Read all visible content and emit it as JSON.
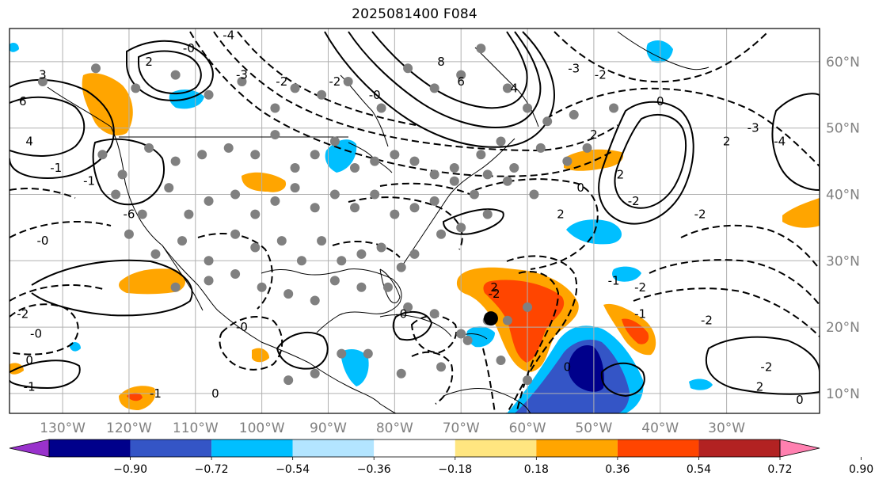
{
  "title": "2025081400 F084",
  "map": {
    "projection": "equirectangular",
    "lon_range": [
      -138,
      -16
    ],
    "lat_range": [
      7,
      65
    ],
    "grid": true,
    "lon_ticks": [
      {
        "lon": -130,
        "label": "130°W"
      },
      {
        "lon": -120,
        "label": "120°W"
      },
      {
        "lon": -110,
        "label": "110°W"
      },
      {
        "lon": -100,
        "label": "100°W"
      },
      {
        "lon": -90,
        "label": "90°W"
      },
      {
        "lon": -80,
        "label": "80°W"
      },
      {
        "lon": -70,
        "label": "70°W"
      },
      {
        "lon": -60,
        "label": "60°W"
      },
      {
        "lon": -50,
        "label": "50°W"
      },
      {
        "lon": -40,
        "label": "40°W"
      },
      {
        "lon": -30,
        "label": "30°W"
      }
    ],
    "lat_ticks": [
      {
        "lat": 60,
        "label": "60°N"
      },
      {
        "lat": 50,
        "label": "50°N"
      },
      {
        "lat": 40,
        "label": "40°N"
      },
      {
        "lat": 30,
        "label": "30°N"
      },
      {
        "lat": 20,
        "label": "20°N"
      },
      {
        "lat": 10,
        "label": "10°N"
      }
    ],
    "storm_center": {
      "lon": -65.5,
      "lat": 21.3
    },
    "station_markers": [
      [
        -133,
        57
      ],
      [
        -125,
        59
      ],
      [
        -119,
        56
      ],
      [
        -113,
        58
      ],
      [
        -108,
        55
      ],
      [
        -103,
        57
      ],
      [
        -98,
        53
      ],
      [
        -95,
        56
      ],
      [
        -91,
        55
      ],
      [
        -87,
        57
      ],
      [
        -82,
        53
      ],
      [
        -78,
        59
      ],
      [
        -74,
        56
      ],
      [
        -70,
        58
      ],
      [
        -67,
        62
      ],
      [
        -63,
        56
      ],
      [
        -60,
        53
      ],
      [
        -57,
        51
      ],
      [
        -53,
        52
      ],
      [
        -51,
        47
      ],
      [
        -47,
        53
      ],
      [
        -124,
        46
      ],
      [
        -121,
        43
      ],
      [
        -117,
        47
      ],
      [
        -113,
        45
      ],
      [
        -109,
        46
      ],
      [
        -105,
        47
      ],
      [
        -101,
        46
      ],
      [
        -98,
        49
      ],
      [
        -95,
        44
      ],
      [
        -92,
        46
      ],
      [
        -89,
        48
      ],
      [
        -86,
        44
      ],
      [
        -83,
        45
      ],
      [
        -80,
        46
      ],
      [
        -77,
        45
      ],
      [
        -74,
        43
      ],
      [
        -71,
        44
      ],
      [
        -67,
        46
      ],
      [
        -64,
        48
      ],
      [
        -62,
        44
      ],
      [
        -58,
        47
      ],
      [
        -54,
        45
      ],
      [
        -122,
        40
      ],
      [
        -118,
        37
      ],
      [
        -114,
        41
      ],
      [
        -111,
        37
      ],
      [
        -108,
        39
      ],
      [
        -104,
        40
      ],
      [
        -101,
        37
      ],
      [
        -98,
        39
      ],
      [
        -95,
        41
      ],
      [
        -92,
        38
      ],
      [
        -89,
        40
      ],
      [
        -86,
        38
      ],
      [
        -83,
        40
      ],
      [
        -80,
        37
      ],
      [
        -77,
        38
      ],
      [
        -74,
        39
      ],
      [
        -71,
        42
      ],
      [
        -68,
        40
      ],
      [
        -66,
        43
      ],
      [
        -63,
        42
      ],
      [
        -59,
        40
      ],
      [
        -120,
        34
      ],
      [
        -116,
        31
      ],
      [
        -112,
        33
      ],
      [
        -108,
        30
      ],
      [
        -104,
        34
      ],
      [
        -101,
        32
      ],
      [
        -97,
        33
      ],
      [
        -94,
        30
      ],
      [
        -91,
        33
      ],
      [
        -88,
        30
      ],
      [
        -85,
        31
      ],
      [
        -82,
        32
      ],
      [
        -79,
        29
      ],
      [
        -77,
        31
      ],
      [
        -73,
        34
      ],
      [
        -70,
        35
      ],
      [
        -66,
        37
      ],
      [
        -113,
        26
      ],
      [
        -108,
        27
      ],
      [
        -104,
        28
      ],
      [
        -100,
        26
      ],
      [
        -96,
        25
      ],
      [
        -92,
        24
      ],
      [
        -89,
        27
      ],
      [
        -85,
        26
      ],
      [
        -81,
        26
      ],
      [
        -78,
        23
      ],
      [
        -74,
        22
      ],
      [
        -70,
        19
      ],
      [
        -66,
        21
      ],
      [
        -63,
        21
      ],
      [
        -60,
        23
      ],
      [
        -69,
        18
      ],
      [
        -64,
        15
      ],
      [
        -60,
        12
      ],
      [
        -73,
        14
      ],
      [
        -79,
        13
      ],
      [
        -84,
        16
      ],
      [
        -88,
        16
      ],
      [
        -92,
        13
      ],
      [
        -96,
        12
      ]
    ],
    "contours": [
      {
        "lon": -133,
        "lat": 58,
        "value": "3"
      },
      {
        "lon": -136,
        "lat": 54,
        "value": "6"
      },
      {
        "lon": -135,
        "lat": 48,
        "value": "4"
      },
      {
        "lon": -131,
        "lat": 44,
        "value": "-1"
      },
      {
        "lon": -133,
        "lat": 33,
        "value": "-0"
      },
      {
        "lon": -126,
        "lat": 42,
        "value": "-1"
      },
      {
        "lon": -120,
        "lat": 37,
        "value": "-6"
      },
      {
        "lon": -117,
        "lat": 60,
        "value": "2"
      },
      {
        "lon": -111,
        "lat": 62,
        "value": "-0"
      },
      {
        "lon": -105,
        "lat": 64,
        "value": "-4"
      },
      {
        "lon": -103,
        "lat": 58,
        "value": "-3"
      },
      {
        "lon": -97,
        "lat": 57,
        "value": "-2"
      },
      {
        "lon": -89,
        "lat": 57,
        "value": "-2"
      },
      {
        "lon": -83,
        "lat": 55,
        "value": "-0"
      },
      {
        "lon": -70,
        "lat": 57,
        "value": "6"
      },
      {
        "lon": -73,
        "lat": 60,
        "value": "8"
      },
      {
        "lon": -62,
        "lat": 56,
        "value": "4"
      },
      {
        "lon": -53,
        "lat": 59,
        "value": "-3"
      },
      {
        "lon": -49,
        "lat": 58,
        "value": "-2"
      },
      {
        "lon": -40,
        "lat": 54,
        "value": "0"
      },
      {
        "lon": -50,
        "lat": 49,
        "value": "2"
      },
      {
        "lon": -46,
        "lat": 43,
        "value": "2"
      },
      {
        "lon": -52,
        "lat": 41,
        "value": "0"
      },
      {
        "lon": -55,
        "lat": 37,
        "value": "2"
      },
      {
        "lon": -44,
        "lat": 39,
        "value": "-2"
      },
      {
        "lon": -34,
        "lat": 37,
        "value": "-2"
      },
      {
        "lon": -30,
        "lat": 48,
        "value": "2"
      },
      {
        "lon": -26,
        "lat": 50,
        "value": "-3"
      },
      {
        "lon": -22,
        "lat": 48,
        "value": "-4"
      },
      {
        "lon": -65,
        "lat": 25,
        "value": "-2"
      },
      {
        "lon": -65,
        "lat": 26,
        "value": "2"
      },
      {
        "lon": -79,
        "lat": 22,
        "value": "-0"
      },
      {
        "lon": -103,
        "lat": 20,
        "value": "-0"
      },
      {
        "lon": -116,
        "lat": 10,
        "value": "-1"
      },
      {
        "lon": -107,
        "lat": 10,
        "value": "0"
      },
      {
        "lon": -54,
        "lat": 14,
        "value": "0"
      },
      {
        "lon": -43,
        "lat": 22,
        "value": "-1"
      },
      {
        "lon": -47,
        "lat": 27,
        "value": "-1"
      },
      {
        "lon": -43,
        "lat": 26,
        "value": "-2"
      },
      {
        "lon": -33,
        "lat": 21,
        "value": "-2"
      },
      {
        "lon": -24,
        "lat": 14,
        "value": "-2"
      },
      {
        "lon": -25,
        "lat": 11,
        "value": "2"
      },
      {
        "lon": -19,
        "lat": 9,
        "value": "0"
      },
      {
        "lon": -136,
        "lat": 22,
        "value": "-2"
      },
      {
        "lon": -134,
        "lat": 19,
        "value": "-0"
      },
      {
        "lon": -135,
        "lat": 15,
        "value": "0"
      },
      {
        "lon": -135,
        "lat": 11,
        "value": "-1"
      }
    ]
  },
  "colorbar": {
    "colors": [
      "#9932cc",
      "#00008b",
      "#3455c6",
      "#00bfff",
      "#b3e5ff",
      "#ffffff",
      "#ffe680",
      "#ffa500",
      "#ff4500",
      "#b22222",
      "#ff80b0"
    ],
    "tick_labels": [
      "−0.90",
      "−0.72",
      "−0.54",
      "−0.36",
      "−0.18",
      "0.18",
      "0.36",
      "0.54",
      "0.72",
      "0.90"
    ]
  }
}
